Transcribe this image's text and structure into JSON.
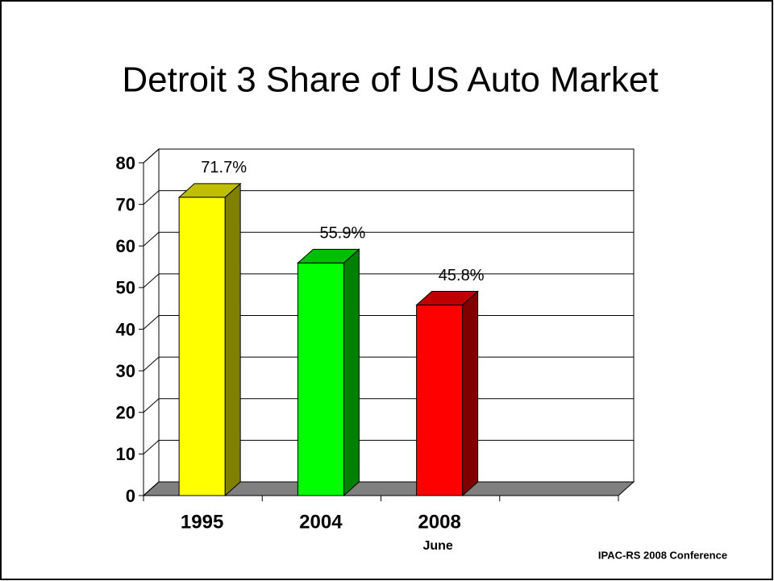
{
  "title": "Detroit 3 Share of US Auto Market",
  "footer": "IPAC-RS 2008 Conference",
  "chart_data": {
    "type": "bar3d",
    "categories": [
      "1995",
      "2004",
      "2008",
      null
    ],
    "annotation": "June",
    "values": [
      71.7,
      55.9,
      45.8,
      null
    ],
    "value_labels": [
      "71.7%",
      "55.9%",
      "45.8%",
      null
    ],
    "colors": [
      "#ffff00",
      "#00ff00",
      "#ff0000"
    ],
    "ylim": [
      0,
      80
    ],
    "yticks": [
      0,
      10,
      20,
      30,
      40,
      50,
      60,
      70,
      80
    ],
    "grid": true
  }
}
